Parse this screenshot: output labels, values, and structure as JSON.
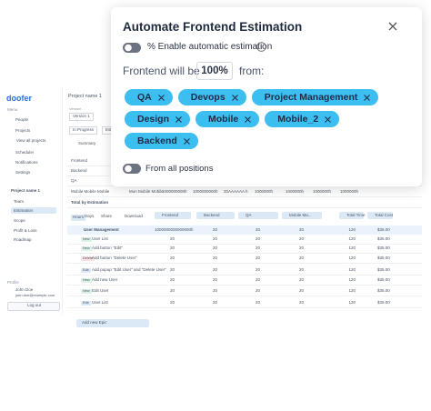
{
  "sidebar": {
    "logo": "doofer",
    "menu": "Menu",
    "items": [
      "People",
      "Projects",
      "View all projects",
      "Scheduler",
      "Notifications",
      "Settings"
    ],
    "project": "Project name 1",
    "project_items": [
      "Team",
      "Estimation",
      "Scope",
      "Profit & Loss",
      "Roadmap"
    ],
    "profile": "Profile",
    "user_name": "John Doe",
    "user_email": "john.doe@example.com",
    "logout": "Log out"
  },
  "main": {
    "title": "Project name 1",
    "version_label": "Version",
    "version": "Version 1",
    "status": "In Progress",
    "estimation": "Estimation",
    "summary": "Summary",
    "summary_rows": [
      "Frontend",
      "Backend",
      "QA",
      "Mobile Mobile Mobile",
      "Total by Estimation"
    ],
    "summary_values": [
      "Mon Mobile Mobile",
      "1000000000h",
      "1000000000h",
      "20AAAAAA h",
      "1000000h",
      "1000000h",
      "1000000h",
      "1000000h"
    ],
    "toolbar": [
      "Hours",
      "Days",
      "Share",
      "Download"
    ],
    "columns": [
      "Frontend",
      "Backend",
      "QA",
      "Mobile Ma...",
      "Total Time",
      "Total Cost"
    ],
    "rows": [
      {
        "label": "User Management",
        "cells": [
          "1000000000000000h",
          "20",
          "20",
          "20",
          "120",
          "$35.00"
        ]
      },
      {
        "tag": "New",
        "label": "User List",
        "cells": [
          "20",
          "20",
          "20",
          "20",
          "120",
          "$35.00"
        ]
      },
      {
        "tag": "New",
        "label": "Add button \"Edit\"",
        "cells": [
          "20",
          "20",
          "20",
          "20",
          "120",
          "$35.00"
        ]
      },
      {
        "tag": "Delete",
        "label": "Add button \"Delete User\"",
        "cells": [
          "20",
          "20",
          "20",
          "20",
          "120",
          "$35.00"
        ]
      },
      {
        "tag": "Edit",
        "label": "Add popup \"Edit User\" and \"Delete User\"",
        "cells": [
          "20",
          "20",
          "20",
          "20",
          "120",
          "$35.00"
        ]
      },
      {
        "tag": "New",
        "label": "Add new User",
        "cells": [
          "20",
          "20",
          "20",
          "20",
          "120",
          "$35.00"
        ]
      },
      {
        "tag": "New",
        "label": "Edit User",
        "cells": [
          "20",
          "20",
          "20",
          "20",
          "120",
          "$35.00"
        ]
      },
      {
        "tag": "Edit",
        "label": "User List",
        "cells": [
          "20",
          "20",
          "20",
          "20",
          "120",
          "$35.00"
        ]
      }
    ],
    "add_epic": "Add new Epic"
  },
  "modal": {
    "title": "Automate Frontend Estimation",
    "enable": "% Enable automatic estimation",
    "will_be": "Frontend will be",
    "percent": "100%",
    "from": "from:",
    "positions": [
      "QA",
      "Devops",
      "Project Management",
      "Design",
      "Mobile",
      "Mobile_2",
      "Backend"
    ],
    "all_positions": "From all positions"
  }
}
